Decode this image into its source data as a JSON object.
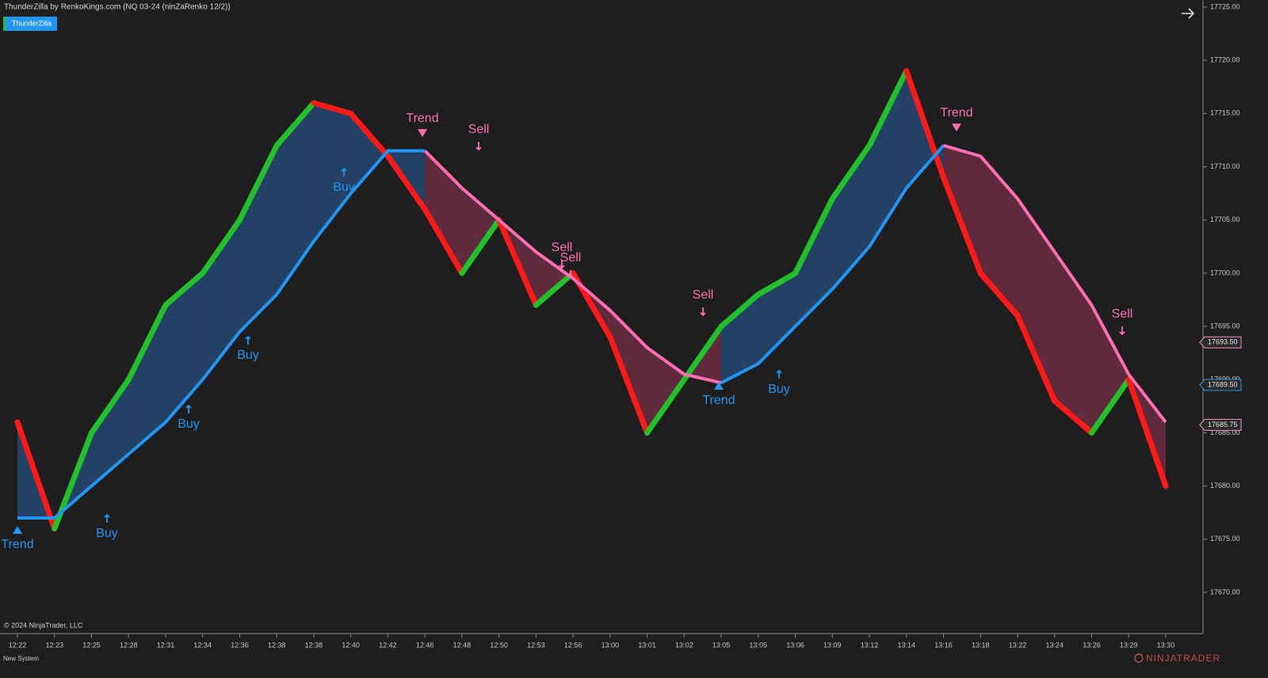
{
  "header": {
    "title": "ThunderZilla by RenkoKings.com (NQ 03-24 (ninZaRenko 12/2))",
    "button": "ThunderZilla"
  },
  "footer": {
    "copyright": "© 2024 NinjaTrader, LLC",
    "tab": "New System",
    "logo": "NINJATRADER"
  },
  "chart_data": {
    "type": "line",
    "categories": [
      "12:22",
      "12:23",
      "12:25",
      "12:28",
      "12:31",
      "12:34",
      "12:36",
      "12:38",
      "12:38",
      "12:40",
      "12:42",
      "12:46",
      "12:48",
      "12:50",
      "12:53",
      "12:56",
      "13:00",
      "13:01",
      "13:02",
      "13:05",
      "13:05",
      "13:06",
      "13:09",
      "13:12",
      "13:14",
      "13:16",
      "13:18",
      "13:22",
      "13:24",
      "13:26",
      "13:29",
      "13:30"
    ],
    "series": [
      {
        "color": "#22c02a",
        "down_color": "#ff1a1a",
        "values": [
          17686,
          17676,
          17685,
          17690,
          17697,
          17700,
          17705,
          17712,
          17716,
          17715,
          17711,
          17706,
          17700,
          17705,
          17697,
          17700,
          17694,
          17685,
          17690,
          17695,
          17698,
          17700,
          17707,
          17712,
          17719,
          17709,
          17700,
          17696,
          17688,
          17685,
          17690,
          17680
        ]
      },
      {
        "color": "#2196f3",
        "values": [
          17677,
          17677,
          17680,
          17683,
          17686,
          17690,
          17694.5,
          17698,
          17703,
          17707.5,
          17711.5,
          17711.5,
          null,
          null,
          null,
          null,
          null,
          null,
          null,
          17689.7,
          17691.5,
          17695,
          17698.5,
          17702.5,
          17708,
          17712,
          null,
          null,
          null,
          null,
          null,
          null
        ]
      },
      {
        "color": "#ff6eb4",
        "values": [
          null,
          null,
          null,
          null,
          null,
          null,
          null,
          null,
          null,
          null,
          null,
          17711.5,
          17708,
          17705,
          17702,
          17699.5,
          17696.5,
          17693,
          17690.5,
          17689.7,
          null,
          null,
          null,
          null,
          null,
          17712,
          17711,
          17707,
          17702,
          17697,
          17690.5,
          17686
        ]
      }
    ],
    "ylim": [
      17666.13,
      17725.67
    ],
    "yticks": [
      {
        "value": 17670,
        "label": "17670.00"
      },
      {
        "value": 17675,
        "label": "17675.00"
      },
      {
        "value": 17680,
        "label": "17680.00"
      },
      {
        "value": 17685,
        "label": "17685.00"
      },
      {
        "value": 17690,
        "label": "17690.00"
      },
      {
        "value": 17695,
        "label": "17695.00"
      },
      {
        "value": 17700,
        "label": "17700.00"
      },
      {
        "value": 17705,
        "label": "17705.00"
      },
      {
        "value": 17710,
        "label": "17710.00"
      },
      {
        "value": 17715,
        "label": "17715.00"
      },
      {
        "value": 17720,
        "label": "17720.00"
      },
      {
        "value": 17725,
        "label": "17725.00"
      }
    ],
    "price_markers": [
      {
        "value": 17693.5,
        "label": "17693.50"
      },
      {
        "value": 17689.5,
        "label": "17689.50"
      },
      {
        "value": 17685.75,
        "label": "17685.75"
      }
    ],
    "annotations": [
      "Trend",
      "Buy",
      "Buy",
      "Buy",
      "Buy",
      "Trend",
      "Sell",
      "Sell",
      "Sell",
      "Sell",
      "Trend",
      "Buy",
      "Trend",
      "Sell"
    ]
  }
}
